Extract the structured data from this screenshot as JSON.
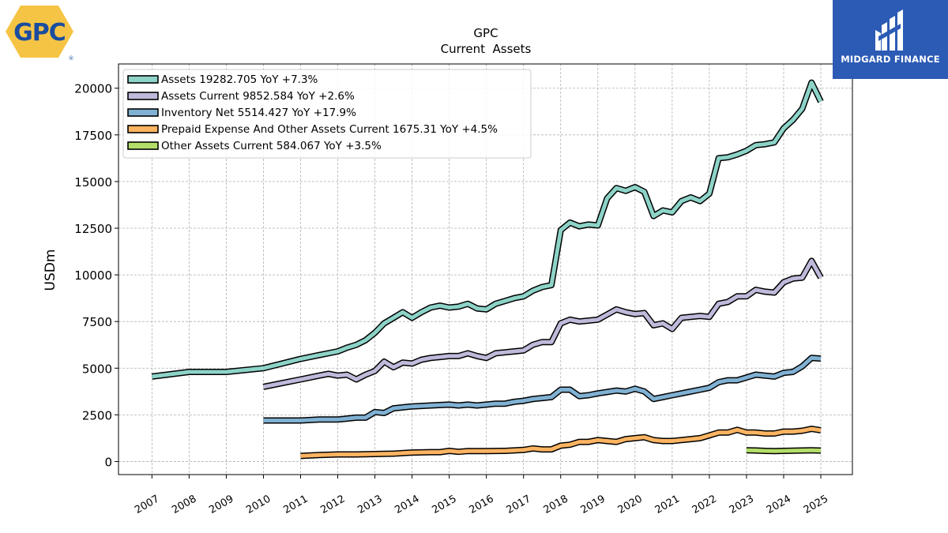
{
  "logo_left": {
    "text": "GPC",
    "registered": "®"
  },
  "logo_right": {
    "text": "MIDGARD FINANCE"
  },
  "colors": {
    "assets": "#8dd3c7",
    "assets_current": "#bebada",
    "inventory": "#80b1d3",
    "prepaid": "#fdb462",
    "other": "#b3de69",
    "brand_blue": "#2c5bb5",
    "gpc_yellow": "#f6c445",
    "gpc_blue": "#1a4d9e"
  },
  "chart_data": {
    "type": "line",
    "title": "GPC",
    "subtitle": "Current  Assets",
    "ylabel": "USDm",
    "xlabel": "",
    "ylim": [
      -700,
      21300
    ],
    "xlim": [
      2006.1,
      2025.85
    ],
    "grid": true,
    "legend_position": "top-left",
    "yticks": [
      0,
      2500,
      5000,
      7500,
      10000,
      12500,
      15000,
      17500,
      20000
    ],
    "ytick_labels": [
      "0",
      "2500",
      "5000",
      "7500",
      "10000",
      "12500",
      "15000",
      "17500",
      "20000"
    ],
    "xtick_labels": [
      "2007",
      "2008",
      "2009",
      "2010",
      "2011",
      "2012",
      "2013",
      "2014",
      "2015",
      "2016",
      "2017",
      "2018",
      "2019",
      "2020",
      "2021",
      "2022",
      "2023",
      "2024",
      "2025"
    ],
    "xtick_values": [
      2007,
      2008,
      2009,
      2010,
      2011,
      2012,
      2013,
      2014,
      2015,
      2016,
      2017,
      2018,
      2019,
      2020,
      2021,
      2022,
      2023,
      2024,
      2025
    ],
    "series": [
      {
        "name": "Assets",
        "legend": "Assets  19282.705 YoY +7.3%",
        "color_key": "assets",
        "points": [
          [
            2007.0,
            4550
          ],
          [
            2008.0,
            4800
          ],
          [
            2009.0,
            4800
          ],
          [
            2010.0,
            5000
          ],
          [
            2010.5,
            5250
          ],
          [
            2011.0,
            5500
          ],
          [
            2011.5,
            5700
          ],
          [
            2012.0,
            5900
          ],
          [
            2012.25,
            6100
          ],
          [
            2012.5,
            6250
          ],
          [
            2012.75,
            6500
          ],
          [
            2013.0,
            6900
          ],
          [
            2013.25,
            7400
          ],
          [
            2013.5,
            7700
          ],
          [
            2013.75,
            8000
          ],
          [
            2014.0,
            7700
          ],
          [
            2014.25,
            8000
          ],
          [
            2014.5,
            8250
          ],
          [
            2014.75,
            8350
          ],
          [
            2015.0,
            8250
          ],
          [
            2015.25,
            8300
          ],
          [
            2015.5,
            8450
          ],
          [
            2015.75,
            8200
          ],
          [
            2016.0,
            8150
          ],
          [
            2016.25,
            8450
          ],
          [
            2016.5,
            8600
          ],
          [
            2016.75,
            8750
          ],
          [
            2017.0,
            8850
          ],
          [
            2017.25,
            9150
          ],
          [
            2017.5,
            9350
          ],
          [
            2017.75,
            9450
          ],
          [
            2018.0,
            12400
          ],
          [
            2018.25,
            12800
          ],
          [
            2018.5,
            12600
          ],
          [
            2018.75,
            12700
          ],
          [
            2019.0,
            12650
          ],
          [
            2019.25,
            14100
          ],
          [
            2019.5,
            14650
          ],
          [
            2019.75,
            14500
          ],
          [
            2020.0,
            14700
          ],
          [
            2020.25,
            14450
          ],
          [
            2020.5,
            13150
          ],
          [
            2020.75,
            13450
          ],
          [
            2021.0,
            13350
          ],
          [
            2021.25,
            13950
          ],
          [
            2021.5,
            14150
          ],
          [
            2021.75,
            13950
          ],
          [
            2022.0,
            14350
          ],
          [
            2022.25,
            16250
          ],
          [
            2022.5,
            16300
          ],
          [
            2022.75,
            16450
          ],
          [
            2023.0,
            16650
          ],
          [
            2023.25,
            16950
          ],
          [
            2023.5,
            17000
          ],
          [
            2023.75,
            17100
          ],
          [
            2024.0,
            17850
          ],
          [
            2024.25,
            18300
          ],
          [
            2024.5,
            18900
          ],
          [
            2024.75,
            20300
          ],
          [
            2025.0,
            19282.705
          ]
        ]
      },
      {
        "name": "Assets Current",
        "legend": "Assets Current  9852.584 YoY +2.6%",
        "color_key": "assets_current",
        "points": [
          [
            2010.0,
            4000
          ],
          [
            2010.5,
            4200
          ],
          [
            2011.0,
            4400
          ],
          [
            2011.5,
            4600
          ],
          [
            2011.75,
            4700
          ],
          [
            2012.0,
            4600
          ],
          [
            2012.25,
            4650
          ],
          [
            2012.5,
            4400
          ],
          [
            2012.75,
            4650
          ],
          [
            2013.0,
            4850
          ],
          [
            2013.25,
            5350
          ],
          [
            2013.5,
            5050
          ],
          [
            2013.75,
            5300
          ],
          [
            2014.0,
            5250
          ],
          [
            2014.25,
            5450
          ],
          [
            2014.5,
            5550
          ],
          [
            2014.75,
            5600
          ],
          [
            2015.0,
            5650
          ],
          [
            2015.25,
            5650
          ],
          [
            2015.5,
            5800
          ],
          [
            2015.75,
            5650
          ],
          [
            2016.0,
            5550
          ],
          [
            2016.25,
            5800
          ],
          [
            2016.5,
            5850
          ],
          [
            2016.75,
            5900
          ],
          [
            2017.0,
            5950
          ],
          [
            2017.25,
            6250
          ],
          [
            2017.5,
            6400
          ],
          [
            2017.75,
            6400
          ],
          [
            2018.0,
            7400
          ],
          [
            2018.25,
            7600
          ],
          [
            2018.5,
            7500
          ],
          [
            2018.75,
            7550
          ],
          [
            2019.0,
            7600
          ],
          [
            2019.5,
            8150
          ],
          [
            2019.75,
            8000
          ],
          [
            2020.0,
            7900
          ],
          [
            2020.25,
            7950
          ],
          [
            2020.5,
            7300
          ],
          [
            2020.75,
            7400
          ],
          [
            2021.0,
            7100
          ],
          [
            2021.25,
            7700
          ],
          [
            2021.5,
            7750
          ],
          [
            2021.75,
            7800
          ],
          [
            2022.0,
            7750
          ],
          [
            2022.25,
            8450
          ],
          [
            2022.5,
            8550
          ],
          [
            2022.75,
            8850
          ],
          [
            2023.0,
            8850
          ],
          [
            2023.25,
            9200
          ],
          [
            2023.5,
            9100
          ],
          [
            2023.75,
            9050
          ],
          [
            2024.0,
            9600
          ],
          [
            2024.25,
            9800
          ],
          [
            2024.5,
            9850
          ],
          [
            2024.75,
            10750
          ],
          [
            2025.0,
            9852.584
          ]
        ]
      },
      {
        "name": "Inventory Net",
        "legend": "Inventory Net  5514.427 YoY +17.9%",
        "color_key": "inventory",
        "points": [
          [
            2010.0,
            2200
          ],
          [
            2011.0,
            2200
          ],
          [
            2011.5,
            2250
          ],
          [
            2012.0,
            2250
          ],
          [
            2012.25,
            2300
          ],
          [
            2012.5,
            2350
          ],
          [
            2012.75,
            2350
          ],
          [
            2013.0,
            2650
          ],
          [
            2013.25,
            2600
          ],
          [
            2013.5,
            2850
          ],
          [
            2013.75,
            2900
          ],
          [
            2014.0,
            2950
          ],
          [
            2014.5,
            3000
          ],
          [
            2015.0,
            3050
          ],
          [
            2015.25,
            3000
          ],
          [
            2015.5,
            3050
          ],
          [
            2015.75,
            3000
          ],
          [
            2016.0,
            3050
          ],
          [
            2016.25,
            3100
          ],
          [
            2016.5,
            3100
          ],
          [
            2016.75,
            3200
          ],
          [
            2017.0,
            3250
          ],
          [
            2017.25,
            3350
          ],
          [
            2017.5,
            3400
          ],
          [
            2017.75,
            3450
          ],
          [
            2018.0,
            3850
          ],
          [
            2018.25,
            3850
          ],
          [
            2018.5,
            3500
          ],
          [
            2018.75,
            3550
          ],
          [
            2019.0,
            3650
          ],
          [
            2019.5,
            3800
          ],
          [
            2019.75,
            3750
          ],
          [
            2020.0,
            3900
          ],
          [
            2020.25,
            3750
          ],
          [
            2020.5,
            3350
          ],
          [
            2020.75,
            3450
          ],
          [
            2021.0,
            3550
          ],
          [
            2021.25,
            3650
          ],
          [
            2021.5,
            3750
          ],
          [
            2021.75,
            3850
          ],
          [
            2022.0,
            3950
          ],
          [
            2022.25,
            4250
          ],
          [
            2022.5,
            4350
          ],
          [
            2022.75,
            4350
          ],
          [
            2023.0,
            4500
          ],
          [
            2023.25,
            4650
          ],
          [
            2023.5,
            4600
          ],
          [
            2023.75,
            4550
          ],
          [
            2024.0,
            4750
          ],
          [
            2024.25,
            4800
          ],
          [
            2024.5,
            5100
          ],
          [
            2024.75,
            5550
          ],
          [
            2025.0,
            5514.427
          ]
        ]
      },
      {
        "name": "Prepaid Expense And Other Assets Current",
        "legend": "Prepaid Expense And Other Assets Current  1675.31 YoY +4.5%",
        "color_key": "prepaid",
        "points": [
          [
            2011.0,
            300
          ],
          [
            2011.5,
            350
          ],
          [
            2012.0,
            380
          ],
          [
            2012.5,
            380
          ],
          [
            2013.0,
            400
          ],
          [
            2013.5,
            420
          ],
          [
            2014.0,
            480
          ],
          [
            2014.5,
            500
          ],
          [
            2014.75,
            500
          ],
          [
            2015.0,
            570
          ],
          [
            2015.25,
            520
          ],
          [
            2015.5,
            560
          ],
          [
            2016.0,
            560
          ],
          [
            2016.5,
            570
          ],
          [
            2017.0,
            620
          ],
          [
            2017.25,
            700
          ],
          [
            2017.5,
            650
          ],
          [
            2017.75,
            650
          ],
          [
            2018.0,
            850
          ],
          [
            2018.25,
            900
          ],
          [
            2018.5,
            1050
          ],
          [
            2018.75,
            1050
          ],
          [
            2019.0,
            1150
          ],
          [
            2019.25,
            1100
          ],
          [
            2019.5,
            1050
          ],
          [
            2019.75,
            1200
          ],
          [
            2020.0,
            1250
          ],
          [
            2020.25,
            1300
          ],
          [
            2020.5,
            1150
          ],
          [
            2020.75,
            1100
          ],
          [
            2021.0,
            1100
          ],
          [
            2021.25,
            1150
          ],
          [
            2021.5,
            1200
          ],
          [
            2021.75,
            1250
          ],
          [
            2022.0,
            1400
          ],
          [
            2022.25,
            1550
          ],
          [
            2022.5,
            1550
          ],
          [
            2022.75,
            1700
          ],
          [
            2023.0,
            1550
          ],
          [
            2023.25,
            1550
          ],
          [
            2023.5,
            1500
          ],
          [
            2023.75,
            1500
          ],
          [
            2024.0,
            1600
          ],
          [
            2024.25,
            1600
          ],
          [
            2024.5,
            1650
          ],
          [
            2024.75,
            1750
          ],
          [
            2025.0,
            1675.31
          ]
        ]
      },
      {
        "name": "Other Assets Current",
        "legend": "Other Assets Current  584.067 YoY +3.5%",
        "color_key": "other",
        "points": [
          [
            2023.0,
            600
          ],
          [
            2023.25,
            590
          ],
          [
            2023.5,
            570
          ],
          [
            2023.75,
            560
          ],
          [
            2024.0,
            570
          ],
          [
            2024.25,
            580
          ],
          [
            2024.5,
            590
          ],
          [
            2024.75,
            600
          ],
          [
            2025.0,
            584.067
          ]
        ]
      }
    ]
  }
}
